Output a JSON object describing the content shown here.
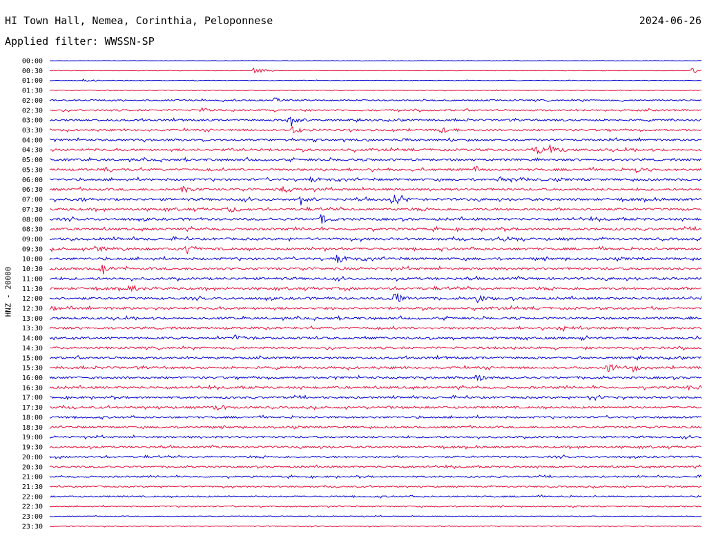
{
  "header": {
    "station": "HI Town Hall, Nemea, Corinthia, Peloponnese",
    "date": "2024-06-26",
    "filter": "Applied filter: WWSSN-SP"
  },
  "axis": {
    "y_label": "HNZ - 20000"
  },
  "colors": {
    "even": "#0000cc",
    "odd": "#e0103a"
  },
  "chart_data": {
    "type": "line",
    "title": "HI Town Hall, Nemea, Corinthia, Peloponnese",
    "subtitle": "Applied filter: WWSSN-SP",
    "ylabel": "HNZ - 20000",
    "xlabel": "",
    "grid": false,
    "rows": [
      "00:00",
      "00:30",
      "01:00",
      "01:30",
      "02:00",
      "02:30",
      "03:00",
      "03:30",
      "04:00",
      "04:30",
      "05:00",
      "05:30",
      "06:00",
      "06:30",
      "07:00",
      "07:30",
      "08:00",
      "08:30",
      "09:00",
      "09:30",
      "10:00",
      "10:30",
      "11:00",
      "11:30",
      "12:00",
      "12:30",
      "13:00",
      "13:30",
      "14:00",
      "14:30",
      "15:00",
      "15:30",
      "16:00",
      "16:30",
      "17:00",
      "17:30",
      "18:00",
      "18:30",
      "19:00",
      "19:30",
      "20:00",
      "20:30",
      "21:00",
      "21:30",
      "22:00",
      "22:30",
      "23:00",
      "23:30"
    ],
    "noise_level": [
      0.2,
      0.3,
      0.4,
      0.4,
      1.0,
      1.2,
      1.3,
      1.3,
      1.4,
      1.5,
      1.5,
      1.5,
      1.5,
      1.5,
      1.6,
      1.6,
      1.6,
      1.6,
      1.6,
      1.6,
      1.6,
      1.6,
      1.6,
      1.6,
      1.6,
      1.6,
      1.5,
      1.5,
      1.5,
      1.5,
      1.5,
      1.5,
      1.5,
      1.5,
      1.4,
      1.4,
      1.3,
      1.3,
      1.3,
      1.3,
      1.2,
      1.2,
      1.1,
      1.0,
      1.0,
      0.8,
      0.6,
      0.5
    ],
    "events": [
      {
        "row": "00:30",
        "minute": 9.4,
        "amp": 6
      },
      {
        "row": "00:30",
        "minute": 29.6,
        "amp": 5
      },
      {
        "row": "01:00",
        "minute": 1.6,
        "amp": 3
      },
      {
        "row": "02:00",
        "minute": 10.3,
        "amp": 5
      },
      {
        "row": "02:30",
        "minute": 7.0,
        "amp": 5
      },
      {
        "row": "03:00",
        "minute": 11.0,
        "amp": 9
      },
      {
        "row": "03:30",
        "minute": 11.2,
        "amp": 5
      },
      {
        "row": "03:30",
        "minute": 18.0,
        "amp": 6
      },
      {
        "row": "04:00",
        "minute": 16.2,
        "amp": 3
      },
      {
        "row": "04:30",
        "minute": 8.3,
        "amp": 4
      },
      {
        "row": "04:30",
        "minute": 22.4,
        "amp": 7
      },
      {
        "row": "04:30",
        "minute": 23.0,
        "amp": 7
      },
      {
        "row": "05:30",
        "minute": 2.6,
        "amp": 3
      },
      {
        "row": "05:30",
        "minute": 19.6,
        "amp": 5
      },
      {
        "row": "05:30",
        "minute": 27.0,
        "amp": 4
      },
      {
        "row": "06:00",
        "minute": 12.0,
        "amp": 4
      },
      {
        "row": "06:00",
        "minute": 20.7,
        "amp": 6
      },
      {
        "row": "06:00",
        "minute": 21.6,
        "amp": 4
      },
      {
        "row": "06:30",
        "minute": 6.1,
        "amp": 6
      },
      {
        "row": "06:30",
        "minute": 10.7,
        "amp": 6
      },
      {
        "row": "07:00",
        "minute": 1.4,
        "amp": 4
      },
      {
        "row": "07:00",
        "minute": 11.5,
        "amp": 6
      },
      {
        "row": "07:00",
        "minute": 15.8,
        "amp": 8
      },
      {
        "row": "07:30",
        "minute": 8.3,
        "amp": 6
      },
      {
        "row": "08:00",
        "minute": 12.5,
        "amp": 7
      },
      {
        "row": "09:00",
        "minute": 1.0,
        "amp": 5
      },
      {
        "row": "09:00",
        "minute": 20.9,
        "amp": 5
      },
      {
        "row": "09:30",
        "minute": 2.1,
        "amp": 5
      },
      {
        "row": "09:30",
        "minute": 6.3,
        "amp": 6
      },
      {
        "row": "09:30",
        "minute": 12.1,
        "amp": 5
      },
      {
        "row": "10:00",
        "minute": 13.2,
        "amp": 7
      },
      {
        "row": "10:30",
        "minute": 2.4,
        "amp": 8
      },
      {
        "row": "11:30",
        "minute": 3.7,
        "amp": 5
      },
      {
        "row": "12:00",
        "minute": 15.8,
        "amp": 12
      },
      {
        "row": "12:00",
        "minute": 19.7,
        "amp": 5
      },
      {
        "row": "12:30",
        "minute": 0.1,
        "amp": 4
      },
      {
        "row": "13:30",
        "minute": 23.4,
        "amp": 6
      },
      {
        "row": "14:00",
        "minute": 8.5,
        "amp": 6
      },
      {
        "row": "14:30",
        "minute": 26.9,
        "amp": 3
      },
      {
        "row": "15:30",
        "minute": 25.7,
        "amp": 7
      },
      {
        "row": "15:30",
        "minute": 26.9,
        "amp": 5
      },
      {
        "row": "16:00",
        "minute": 19.6,
        "amp": 6
      },
      {
        "row": "16:30",
        "minute": 29.4,
        "amp": 4
      },
      {
        "row": "17:00",
        "minute": 24.9,
        "amp": 5
      },
      {
        "row": "17:30",
        "minute": 7.6,
        "amp": 5
      }
    ]
  }
}
